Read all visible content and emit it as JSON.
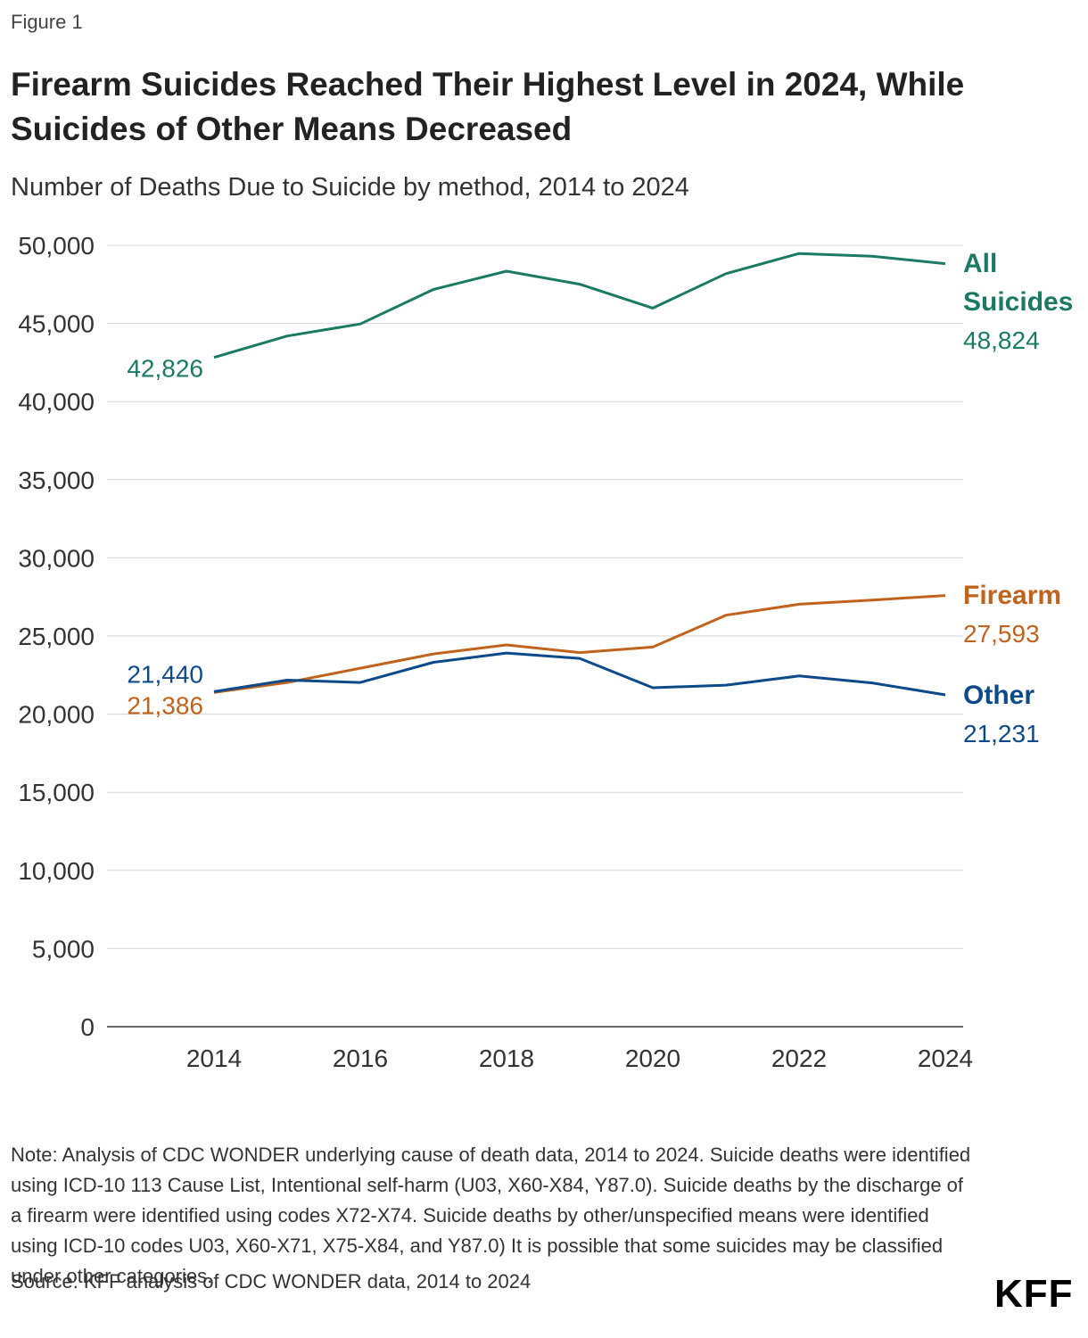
{
  "header": {
    "eyebrow": "Figure 1",
    "title": "Firearm Suicides Reached Their Highest Level in 2024, While Suicides of Other Means Decreased",
    "subtitle": "Number of Deaths Due to Suicide by method, 2014 to 2024"
  },
  "footer": {
    "note": "Note: Analysis of CDC WONDER underlying cause of death data, 2014 to 2024. Suicide deaths were identified using ICD-10 113 Cause List, Intentional self-harm (U03, X60-X84, Y87.0). Suicide deaths by the discharge of a firearm were identified using codes X72-X74. Suicide deaths by other/unspecified means were identified using ICD-10 codes U03, X60-X71, X75-X84, and Y87.0) It is possible that some suicides may be classified under other categories.",
    "source": "Source: KFF analysis of CDC WONDER data, 2014 to 2024",
    "brand": "KFF"
  },
  "chart_data": {
    "type": "line",
    "x": [
      2014,
      2015,
      2016,
      2017,
      2018,
      2019,
      2020,
      2021,
      2022,
      2023,
      2024
    ],
    "xticks": [
      "2014",
      "2016",
      "2018",
      "2020",
      "2022",
      "2024"
    ],
    "ylim": [
      0,
      50000
    ],
    "yticks": [
      "0",
      "5,000",
      "10,000",
      "15,000",
      "20,000",
      "25,000",
      "30,000",
      "35,000",
      "40,000",
      "45,000",
      "50,000"
    ],
    "grid": true,
    "series": [
      {
        "name": "All Suicides",
        "color": "#1b7a64",
        "values": [
          42826,
          44193,
          44965,
          47173,
          48344,
          47511,
          45979,
          48183,
          49476,
          49300,
          48824
        ],
        "start_label": "42,826",
        "end_label": "48,824",
        "end_name_lines": [
          "All",
          "Suicides"
        ]
      },
      {
        "name": "Firearm",
        "color": "#c0631c",
        "values": [
          21386,
          22018,
          22938,
          23854,
          24432,
          23941,
          24292,
          26328,
          27032,
          27300,
          27593
        ],
        "start_label": "21,386",
        "end_label": "27,593",
        "end_name_lines": [
          "Firearm"
        ]
      },
      {
        "name": "Other",
        "color": "#0d4a8a",
        "values": [
          21440,
          22175,
          22027,
          23319,
          23912,
          23570,
          21687,
          21855,
          22444,
          22000,
          21231
        ],
        "start_label": "21,440",
        "end_label": "21,231",
        "end_name_lines": [
          "Other"
        ]
      }
    ]
  }
}
